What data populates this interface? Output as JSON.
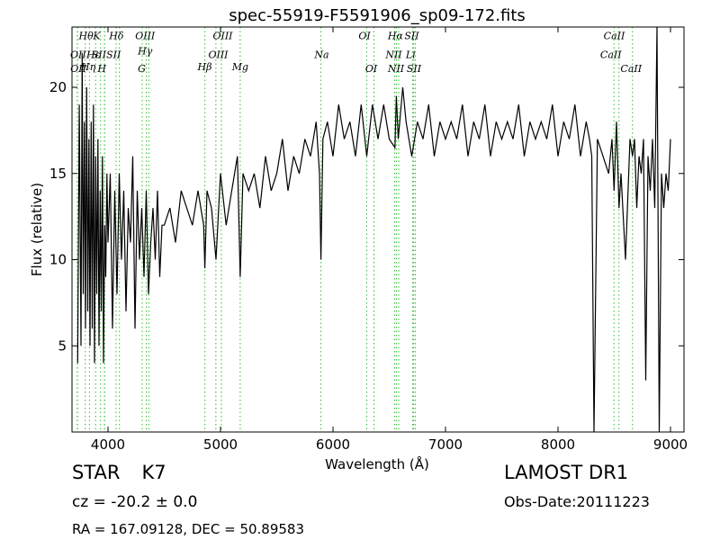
{
  "chart_data": {
    "type": "line",
    "title": "spec-55919-F5591906_sp09-172.fits",
    "xlabel": "Wavelength (Å)",
    "ylabel": "Flux (relative)",
    "xlim": [
      3680,
      9120
    ],
    "ylim": [
      0,
      23.5
    ],
    "xticks": [
      4000,
      5000,
      6000,
      7000,
      8000,
      9000
    ],
    "yticks": [
      5,
      10,
      15,
      20
    ],
    "grid": false,
    "series": [
      {
        "x": [
          3730,
          3745,
          3760,
          3770,
          3780,
          3790,
          3800,
          3810,
          3820,
          3830,
          3840,
          3850,
          3860,
          3870,
          3880,
          3890,
          3900,
          3910,
          3920,
          3930,
          3940,
          3950,
          3960,
          3970,
          3980,
          3990,
          4000,
          4020,
          4040,
          4060,
          4080,
          4100,
          4120,
          4140,
          4160,
          4180,
          4200,
          4220,
          4240,
          4260,
          4280,
          4300,
          4320,
          4340,
          4360,
          4380,
          4400,
          4420,
          4440,
          4460,
          4480,
          4500,
          4550,
          4600,
          4650,
          4700,
          4750,
          4800,
          4850,
          4861,
          4880,
          4920,
          4960,
          5000,
          5050,
          5100,
          5150,
          5175,
          5200,
          5250,
          5300,
          5350,
          5400,
          5450,
          5500,
          5550,
          5600,
          5650,
          5700,
          5750,
          5800,
          5850,
          5880,
          5893,
          5910,
          5950,
          6000,
          6050,
          6100,
          6150,
          6200,
          6250,
          6300,
          6350,
          6400,
          6450,
          6500,
          6550,
          6563,
          6580,
          6620,
          6650,
          6700,
          6750,
          6800,
          6850,
          6900,
          6950,
          7000,
          7050,
          7100,
          7150,
          7200,
          7250,
          7300,
          7350,
          7400,
          7450,
          7500,
          7550,
          7600,
          7650,
          7700,
          7750,
          7800,
          7850,
          7900,
          7950,
          8000,
          8050,
          8100,
          8150,
          8200,
          8250,
          8280,
          8300,
          8320,
          8350,
          8400,
          8450,
          8480,
          8498,
          8520,
          8542,
          8560,
          8600,
          8640,
          8662,
          8680,
          8700,
          8720,
          8740,
          8760,
          8780,
          8800,
          8820,
          8840,
          8860,
          8880,
          8900,
          8920,
          8940,
          8960,
          8980,
          9000
        ],
        "y": [
          4,
          19,
          5,
          22,
          8,
          18,
          6,
          20,
          7,
          17,
          5,
          18,
          6,
          19,
          4,
          16,
          8,
          17,
          5,
          14,
          7,
          16,
          4,
          12,
          9,
          15,
          11,
          15,
          6,
          14,
          8,
          15,
          10,
          14,
          7,
          13,
          11,
          16,
          6,
          14,
          10,
          13,
          9,
          14,
          8,
          11,
          13,
          10,
          14,
          9,
          12,
          12,
          13,
          11,
          14,
          13,
          12,
          14,
          12,
          9.5,
          14,
          13,
          10,
          15,
          12,
          14,
          16,
          9,
          15,
          14,
          15,
          13,
          16,
          14,
          15,
          17,
          14,
          16,
          15,
          17,
          16,
          18,
          15,
          10,
          17,
          18,
          16,
          19,
          17,
          18,
          16,
          19,
          16,
          19,
          17,
          19,
          17,
          16.5,
          19.5,
          17,
          20,
          18,
          16,
          18,
          17,
          19,
          16,
          18,
          17,
          18,
          17,
          19,
          16,
          18,
          17,
          19,
          16,
          18,
          17,
          18,
          17,
          19,
          16,
          18,
          17,
          18,
          17,
          19,
          16,
          18,
          17,
          19,
          16,
          18,
          17,
          16,
          0,
          17,
          16,
          15,
          17,
          14,
          18,
          13,
          15,
          10,
          17,
          16,
          17,
          13,
          16,
          15,
          17,
          3,
          16,
          14,
          17,
          13,
          23.5,
          0,
          15,
          13,
          15,
          14,
          17
        ]
      }
    ],
    "lines": [
      {
        "name": "Hθ",
        "x": 3798,
        "label_x": 3805,
        "label_y": 22.8
      },
      {
        "name": "OII",
        "x": 3727,
        "label_x": 3735,
        "label_y": 21.7
      },
      {
        "name": "OII",
        "x": 3729,
        "label_x": 3737,
        "label_y": 20.9
      },
      {
        "name": "Hη",
        "x": 3835,
        "label_x": 3825,
        "label_y": 21.0
      },
      {
        "name": "Hε",
        "x": 3889,
        "label_x": 3870,
        "label_y": 21.7
      },
      {
        "name": "K",
        "x": 3934,
        "label_x": 3900,
        "label_y": 22.8
      },
      {
        "name": "SII",
        "x": 3970,
        "label_x": 3920,
        "label_y": 21.7
      },
      {
        "name": "H",
        "x": 3968,
        "label_x": 3945,
        "label_y": 20.9
      },
      {
        "name": "Hδ",
        "x": 4102,
        "label_x": 4075,
        "label_y": 22.8
      },
      {
        "name": "SII",
        "x": 4072,
        "label_x": 4050,
        "label_y": 21.7
      },
      {
        "name": "OIII",
        "x": 4363,
        "label_x": 4330,
        "label_y": 22.8
      },
      {
        "name": "Hγ",
        "x": 4340,
        "label_x": 4330,
        "label_y": 21.9
      },
      {
        "name": "G",
        "x": 4304,
        "label_x": 4300,
        "label_y": 20.9
      },
      {
        "name": "Hβ",
        "x": 4861,
        "label_x": 4860,
        "label_y": 21.0
      },
      {
        "name": "OIII",
        "x": 4959,
        "label_x": 5020,
        "label_y": 22.8
      },
      {
        "name": "OIII",
        "x": 5007,
        "label_x": 4980,
        "label_y": 21.7
      },
      {
        "name": "Mg",
        "x": 5175,
        "label_x": 5175,
        "label_y": 21.0
      },
      {
        "name": "Na",
        "x": 5893,
        "label_x": 5900,
        "label_y": 21.7
      },
      {
        "name": "OI",
        "x": 6300,
        "label_x": 6280,
        "label_y": 22.8
      },
      {
        "name": "OI",
        "x": 6364,
        "label_x": 6340,
        "label_y": 20.9
      },
      {
        "name": "Hα",
        "x": 6563,
        "label_x": 6555,
        "label_y": 22.8
      },
      {
        "name": "SII",
        "x": 6717,
        "label_x": 6700,
        "label_y": 22.8
      },
      {
        "name": "NII",
        "x": 6548,
        "label_x": 6540,
        "label_y": 21.7
      },
      {
        "name": "Li",
        "x": 6707,
        "label_x": 6690,
        "label_y": 21.7
      },
      {
        "name": "NII",
        "x": 6584,
        "label_x": 6560,
        "label_y": 20.9
      },
      {
        "name": "SII",
        "x": 6731,
        "label_x": 6720,
        "label_y": 20.9
      },
      {
        "name": "CaII",
        "x": 8498,
        "label_x": 8500,
        "label_y": 22.8
      },
      {
        "name": "CaII",
        "x": 8542,
        "label_x": 8470,
        "label_y": 21.7
      },
      {
        "name": "CaII",
        "x": 8662,
        "label_x": 8650,
        "label_y": 20.9
      }
    ]
  },
  "info": {
    "object_class": "STAR",
    "subclass": "K7",
    "cz_text": "cz = -20.2 ± 0.0",
    "radec_text": "RA = 167.09128, DEC = 50.89583",
    "survey": "LAMOST DR1",
    "obs_date": "Obs-Date:20111223"
  }
}
